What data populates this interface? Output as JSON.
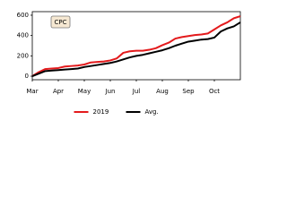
{
  "chart_data": {
    "type": "line",
    "annotation": "CPC",
    "categories": [
      "Mar",
      null,
      null,
      null,
      "Apr",
      null,
      null,
      null,
      "May",
      null,
      null,
      null,
      "Jun",
      null,
      null,
      null,
      "Jul",
      null,
      null,
      null,
      "Aug",
      null,
      null,
      null,
      "Sep",
      null,
      null,
      null,
      "Oct",
      null,
      null,
      null,
      null
    ],
    "series": [
      {
        "name": "2019",
        "color": "#e31a1c",
        "values": [
          0,
          40,
          70,
          75,
          80,
          95,
          100,
          105,
          115,
          135,
          140,
          145,
          155,
          175,
          230,
          245,
          250,
          250,
          260,
          275,
          305,
          330,
          370,
          385,
          395,
          405,
          410,
          420,
          460,
          500,
          530,
          570,
          590
        ]
      },
      {
        "name": "Avg.",
        "color": "#000000",
        "values": [
          0,
          25,
          50,
          55,
          60,
          65,
          70,
          75,
          90,
          100,
          110,
          120,
          130,
          145,
          165,
          185,
          200,
          210,
          225,
          240,
          255,
          275,
          300,
          320,
          340,
          350,
          360,
          365,
          380,
          440,
          470,
          490,
          530
        ]
      }
    ],
    "ylim": [
      -35,
      635
    ],
    "yticks": [
      0,
      200,
      400,
      600
    ],
    "grid": false,
    "legend": "lower center"
  }
}
